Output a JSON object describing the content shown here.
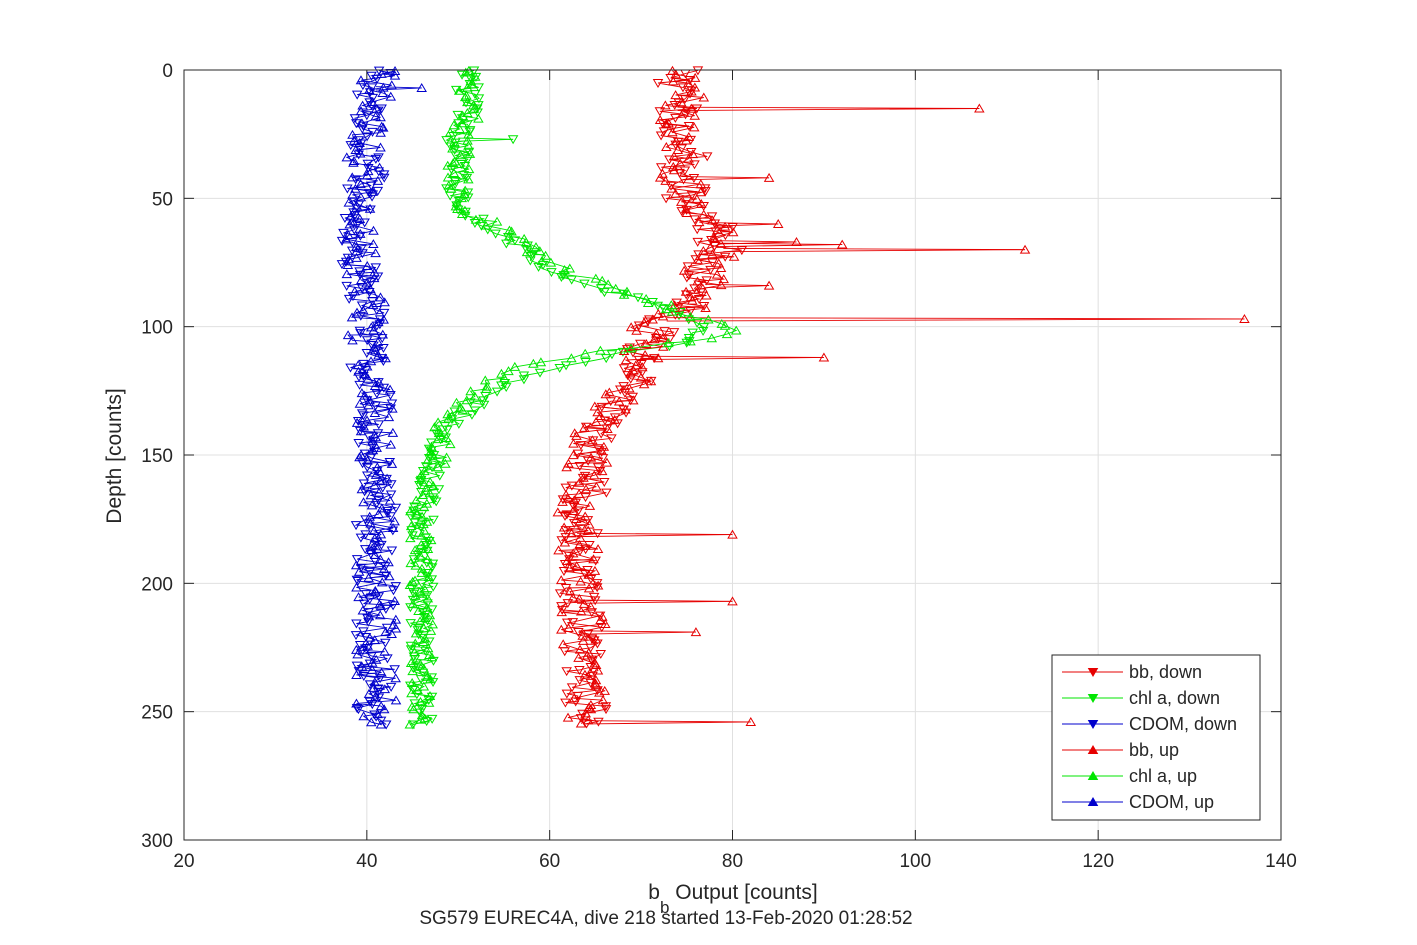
{
  "chart_data": {
    "type": "line",
    "title": "SG579 EUREC4A, dive 218 started 13-Feb-2020 01:28:52",
    "xlabel_main": "b",
    "xlabel_sub": "b",
    "xlabel_rest": " Output [counts]",
    "ylabel": "Depth [counts]",
    "xlim": [
      20,
      140
    ],
    "ylim": [
      0,
      300
    ],
    "y_reversed": true,
    "grid": true,
    "legend_position": "bottom-right",
    "xticks": [
      "20",
      "40",
      "60",
      "80",
      "100",
      "120",
      "140"
    ],
    "yticks": [
      "0",
      "50",
      "100",
      "150",
      "200",
      "250",
      "300"
    ],
    "colors": {
      "bb": "#e60000",
      "chl": "#00e600",
      "cdom": "#0000cc"
    },
    "depth_profile": [
      0,
      5,
      10,
      15,
      20,
      25,
      30,
      35,
      40,
      45,
      50,
      55,
      60,
      65,
      70,
      75,
      80,
      85,
      90,
      95,
      100,
      105,
      110,
      115,
      120,
      125,
      130,
      135,
      140,
      145,
      150,
      155,
      160,
      165,
      170,
      175,
      180,
      185,
      190,
      195,
      200,
      205,
      210,
      215,
      220,
      225,
      230,
      235,
      240,
      245,
      250,
      255
    ],
    "series": [
      {
        "name": "bb, down",
        "color": "bb",
        "marker": "down",
        "values": [
          74,
          74,
          75,
          74,
          74,
          74,
          75,
          75,
          74,
          75,
          75,
          75,
          78,
          78,
          79,
          77,
          77,
          77,
          76,
          74,
          71,
          72,
          70,
          70,
          70,
          67,
          67,
          66,
          65,
          65,
          64,
          64,
          64,
          64,
          63,
          63,
          63,
          63,
          63,
          63,
          63,
          63,
          63,
          64,
          63,
          63,
          64,
          64,
          64,
          64,
          64,
          64
        ],
        "jitter": 2.3
      },
      {
        "name": "chl a, down",
        "color": "chl",
        "marker": "down",
        "values": [
          51,
          51,
          51,
          51,
          51,
          50,
          50,
          50,
          50,
          50,
          50,
          51,
          53,
          55,
          57,
          59,
          62,
          66,
          70,
          74,
          77,
          76,
          68,
          62,
          57,
          54,
          52,
          50,
          49,
          48,
          48,
          47,
          47,
          47,
          46,
          46,
          46,
          46,
          46,
          46,
          46,
          46,
          46,
          46,
          46,
          46,
          46,
          46,
          46,
          46,
          46,
          46
        ],
        "jitter": 1.3
      },
      {
        "name": "CDOM, down",
        "color": "cdom",
        "marker": "down",
        "values": [
          41,
          41,
          41,
          40,
          40,
          40,
          40,
          40,
          40,
          40,
          39,
          39,
          39,
          39,
          39,
          39,
          39,
          40,
          40,
          40,
          40,
          40,
          40,
          40,
          41,
          41,
          41,
          41,
          41,
          41,
          41,
          41,
          41,
          41,
          41,
          41,
          41,
          41,
          41,
          41,
          41,
          41,
          41,
          41,
          41,
          41,
          41,
          41,
          41,
          41,
          41,
          41
        ],
        "jitter": 2.2
      },
      {
        "name": "bb, up",
        "color": "bb",
        "marker": "up",
        "values": [
          74,
          74,
          75,
          74,
          74,
          74,
          75,
          75,
          74,
          75,
          75,
          75,
          78,
          78,
          79,
          77,
          77,
          77,
          76,
          74,
          71,
          72,
          70,
          70,
          70,
          67,
          67,
          66,
          65,
          65,
          64,
          64,
          64,
          64,
          63,
          63,
          63,
          63,
          63,
          63,
          63,
          63,
          63,
          64,
          63,
          63,
          64,
          64,
          64,
          64,
          64,
          64
        ],
        "jitter": 2.3
      },
      {
        "name": "chl a, up",
        "color": "chl",
        "marker": "up",
        "values": [
          52,
          52,
          51,
          51,
          51,
          50,
          50,
          50,
          50,
          50,
          50,
          51,
          54,
          56,
          58,
          60,
          63,
          67,
          71,
          75,
          80,
          78,
          64,
          58,
          54,
          52,
          50,
          49,
          48,
          48,
          48,
          47,
          47,
          47,
          46,
          46,
          46,
          46,
          46,
          46,
          46,
          46,
          46,
          46,
          46,
          46,
          46,
          46,
          46,
          46,
          46,
          46
        ],
        "jitter": 1.3
      },
      {
        "name": "CDOM, up",
        "color": "cdom",
        "marker": "up",
        "values": [
          41,
          41,
          41,
          40,
          40,
          40,
          40,
          40,
          40,
          40,
          39,
          39,
          39,
          39,
          39,
          39,
          39,
          40,
          40,
          40,
          40,
          40,
          40,
          40,
          41,
          41,
          41,
          41,
          41,
          41,
          41,
          41,
          41,
          41,
          41,
          41,
          41,
          41,
          41,
          41,
          41,
          41,
          41,
          41,
          41,
          41,
          41,
          41,
          41,
          41,
          41,
          41
        ],
        "jitter": 2.2
      }
    ],
    "spikes": [
      {
        "series": "bb, up",
        "x": 107,
        "y": 15
      },
      {
        "series": "bb, up",
        "x": 84,
        "y": 42
      },
      {
        "series": "bb, up",
        "x": 85,
        "y": 60
      },
      {
        "series": "bb, up",
        "x": 87,
        "y": 67
      },
      {
        "series": "bb, up",
        "x": 92,
        "y": 68
      },
      {
        "series": "bb, up",
        "x": 112,
        "y": 70
      },
      {
        "series": "bb, up",
        "x": 84,
        "y": 84
      },
      {
        "series": "bb, up",
        "x": 136,
        "y": 97
      },
      {
        "series": "bb, up",
        "x": 90,
        "y": 112
      },
      {
        "series": "bb, up",
        "x": 80,
        "y": 181
      },
      {
        "series": "bb, up",
        "x": 80,
        "y": 207
      },
      {
        "series": "bb, up",
        "x": 76,
        "y": 219
      },
      {
        "series": "bb, up",
        "x": 82,
        "y": 254
      },
      {
        "series": "chl a, down",
        "x": 56,
        "y": 27
      },
      {
        "series": "CDOM, up",
        "x": 46,
        "y": 7
      }
    ]
  }
}
